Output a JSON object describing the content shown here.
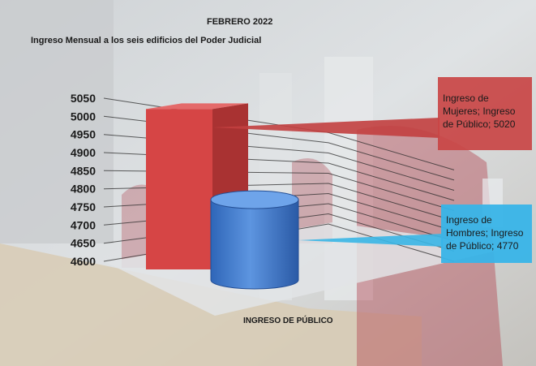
{
  "chart_data": {
    "type": "bar",
    "title": "FEBRERO 2022",
    "subtitle": "Ingreso Mensual a los seis edificios del Poder Judicial",
    "xlabel": "INGRESO DE PÚBLICO",
    "ylabel": "",
    "ylim": [
      4600,
      5050
    ],
    "yticks": [
      4600,
      4650,
      4700,
      4750,
      4800,
      4850,
      4900,
      4950,
      5000,
      5050
    ],
    "grid": true,
    "categories": [
      "Ingreso de Público"
    ],
    "series": [
      {
        "name": "Ingreso de Mujeres",
        "values": [
          5020
        ],
        "color": "#d64545",
        "label_lines": [
          "Ingreso de",
          "Mujeres; Ingreso",
          "de Público; 5020"
        ]
      },
      {
        "name": "Ingreso de Hombres",
        "values": [
          4770
        ],
        "color": "#3f7fd6",
        "label_lines": [
          "Ingreso  de",
          "Hombres; Ingreso",
          "de Público; 4770"
        ]
      }
    ]
  }
}
